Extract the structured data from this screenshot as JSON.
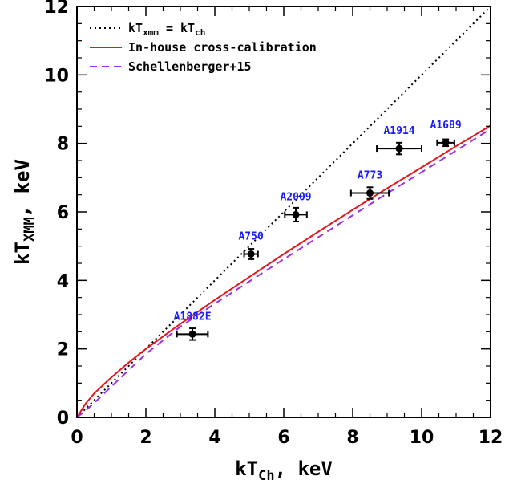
{
  "chart_data": {
    "type": "scatter",
    "xlabel": {
      "main": "kT",
      "sub": "Ch",
      "tail": ", keV"
    },
    "ylabel": {
      "main": "kT",
      "sub": "XMM",
      "tail": ", keV"
    },
    "xlim": [
      0,
      12
    ],
    "ylim": [
      0,
      12
    ],
    "xticks": [
      "0",
      "2",
      "4",
      "6",
      "8",
      "10",
      "12"
    ],
    "yticks": [
      "0",
      "2",
      "4",
      "6",
      "8",
      "10",
      "12"
    ],
    "grid": false,
    "legend_position": "top-left",
    "legend": [
      {
        "main": "kT",
        "sub1": "xmm",
        "mid": " = kT",
        "sub2": "ch",
        "color": "#000000",
        "style": "dotted"
      },
      {
        "text": "In-house cross-calibration",
        "color": "#e8141c",
        "style": "solid"
      },
      {
        "text": "Schellenberger+15",
        "color": "#9b30e6",
        "style": "dashed"
      }
    ],
    "points": [
      {
        "label": "A1882E",
        "x": 3.35,
        "y": 2.43,
        "xerr": 0.45,
        "yerr": 0.17
      },
      {
        "label": "A750",
        "x": 5.05,
        "y": 4.77,
        "xerr": 0.2,
        "yerr": 0.15
      },
      {
        "label": "A2009",
        "x": 6.35,
        "y": 5.92,
        "xerr": 0.32,
        "yerr": 0.2
      },
      {
        "label": "A773",
        "x": 8.5,
        "y": 6.55,
        "xerr": 0.55,
        "yerr": 0.17
      },
      {
        "label": "A1914",
        "x": 9.35,
        "y": 7.85,
        "xerr": 0.65,
        "yerr": 0.17
      },
      {
        "label": "A1689",
        "x": 10.7,
        "y": 8.02,
        "xerr": 0.25,
        "yerr": 0.1
      }
    ],
    "curves": {
      "identity": {
        "x": [
          0,
          12
        ],
        "y": [
          0,
          12
        ]
      },
      "in_house": {
        "x": [
          0,
          0.25,
          0.5,
          1,
          1.5,
          2,
          3,
          4,
          5,
          6,
          7,
          8,
          9,
          10,
          11,
          12
        ],
        "y": [
          0,
          0.4,
          0.7,
          1.17,
          1.6,
          2.0,
          2.73,
          3.43,
          4.1,
          4.77,
          5.42,
          6.06,
          6.69,
          7.3,
          7.92,
          8.52
        ]
      },
      "schellenberger15": {
        "x": [
          0,
          0.25,
          0.5,
          1,
          1.5,
          2,
          3,
          4,
          5,
          6,
          7,
          8,
          9,
          10,
          11,
          12
        ],
        "y": [
          0,
          0.2,
          0.42,
          0.9,
          1.38,
          1.85,
          2.65,
          3.32,
          3.97,
          4.62,
          5.26,
          5.9,
          6.54,
          7.16,
          7.79,
          8.42
        ]
      }
    }
  }
}
